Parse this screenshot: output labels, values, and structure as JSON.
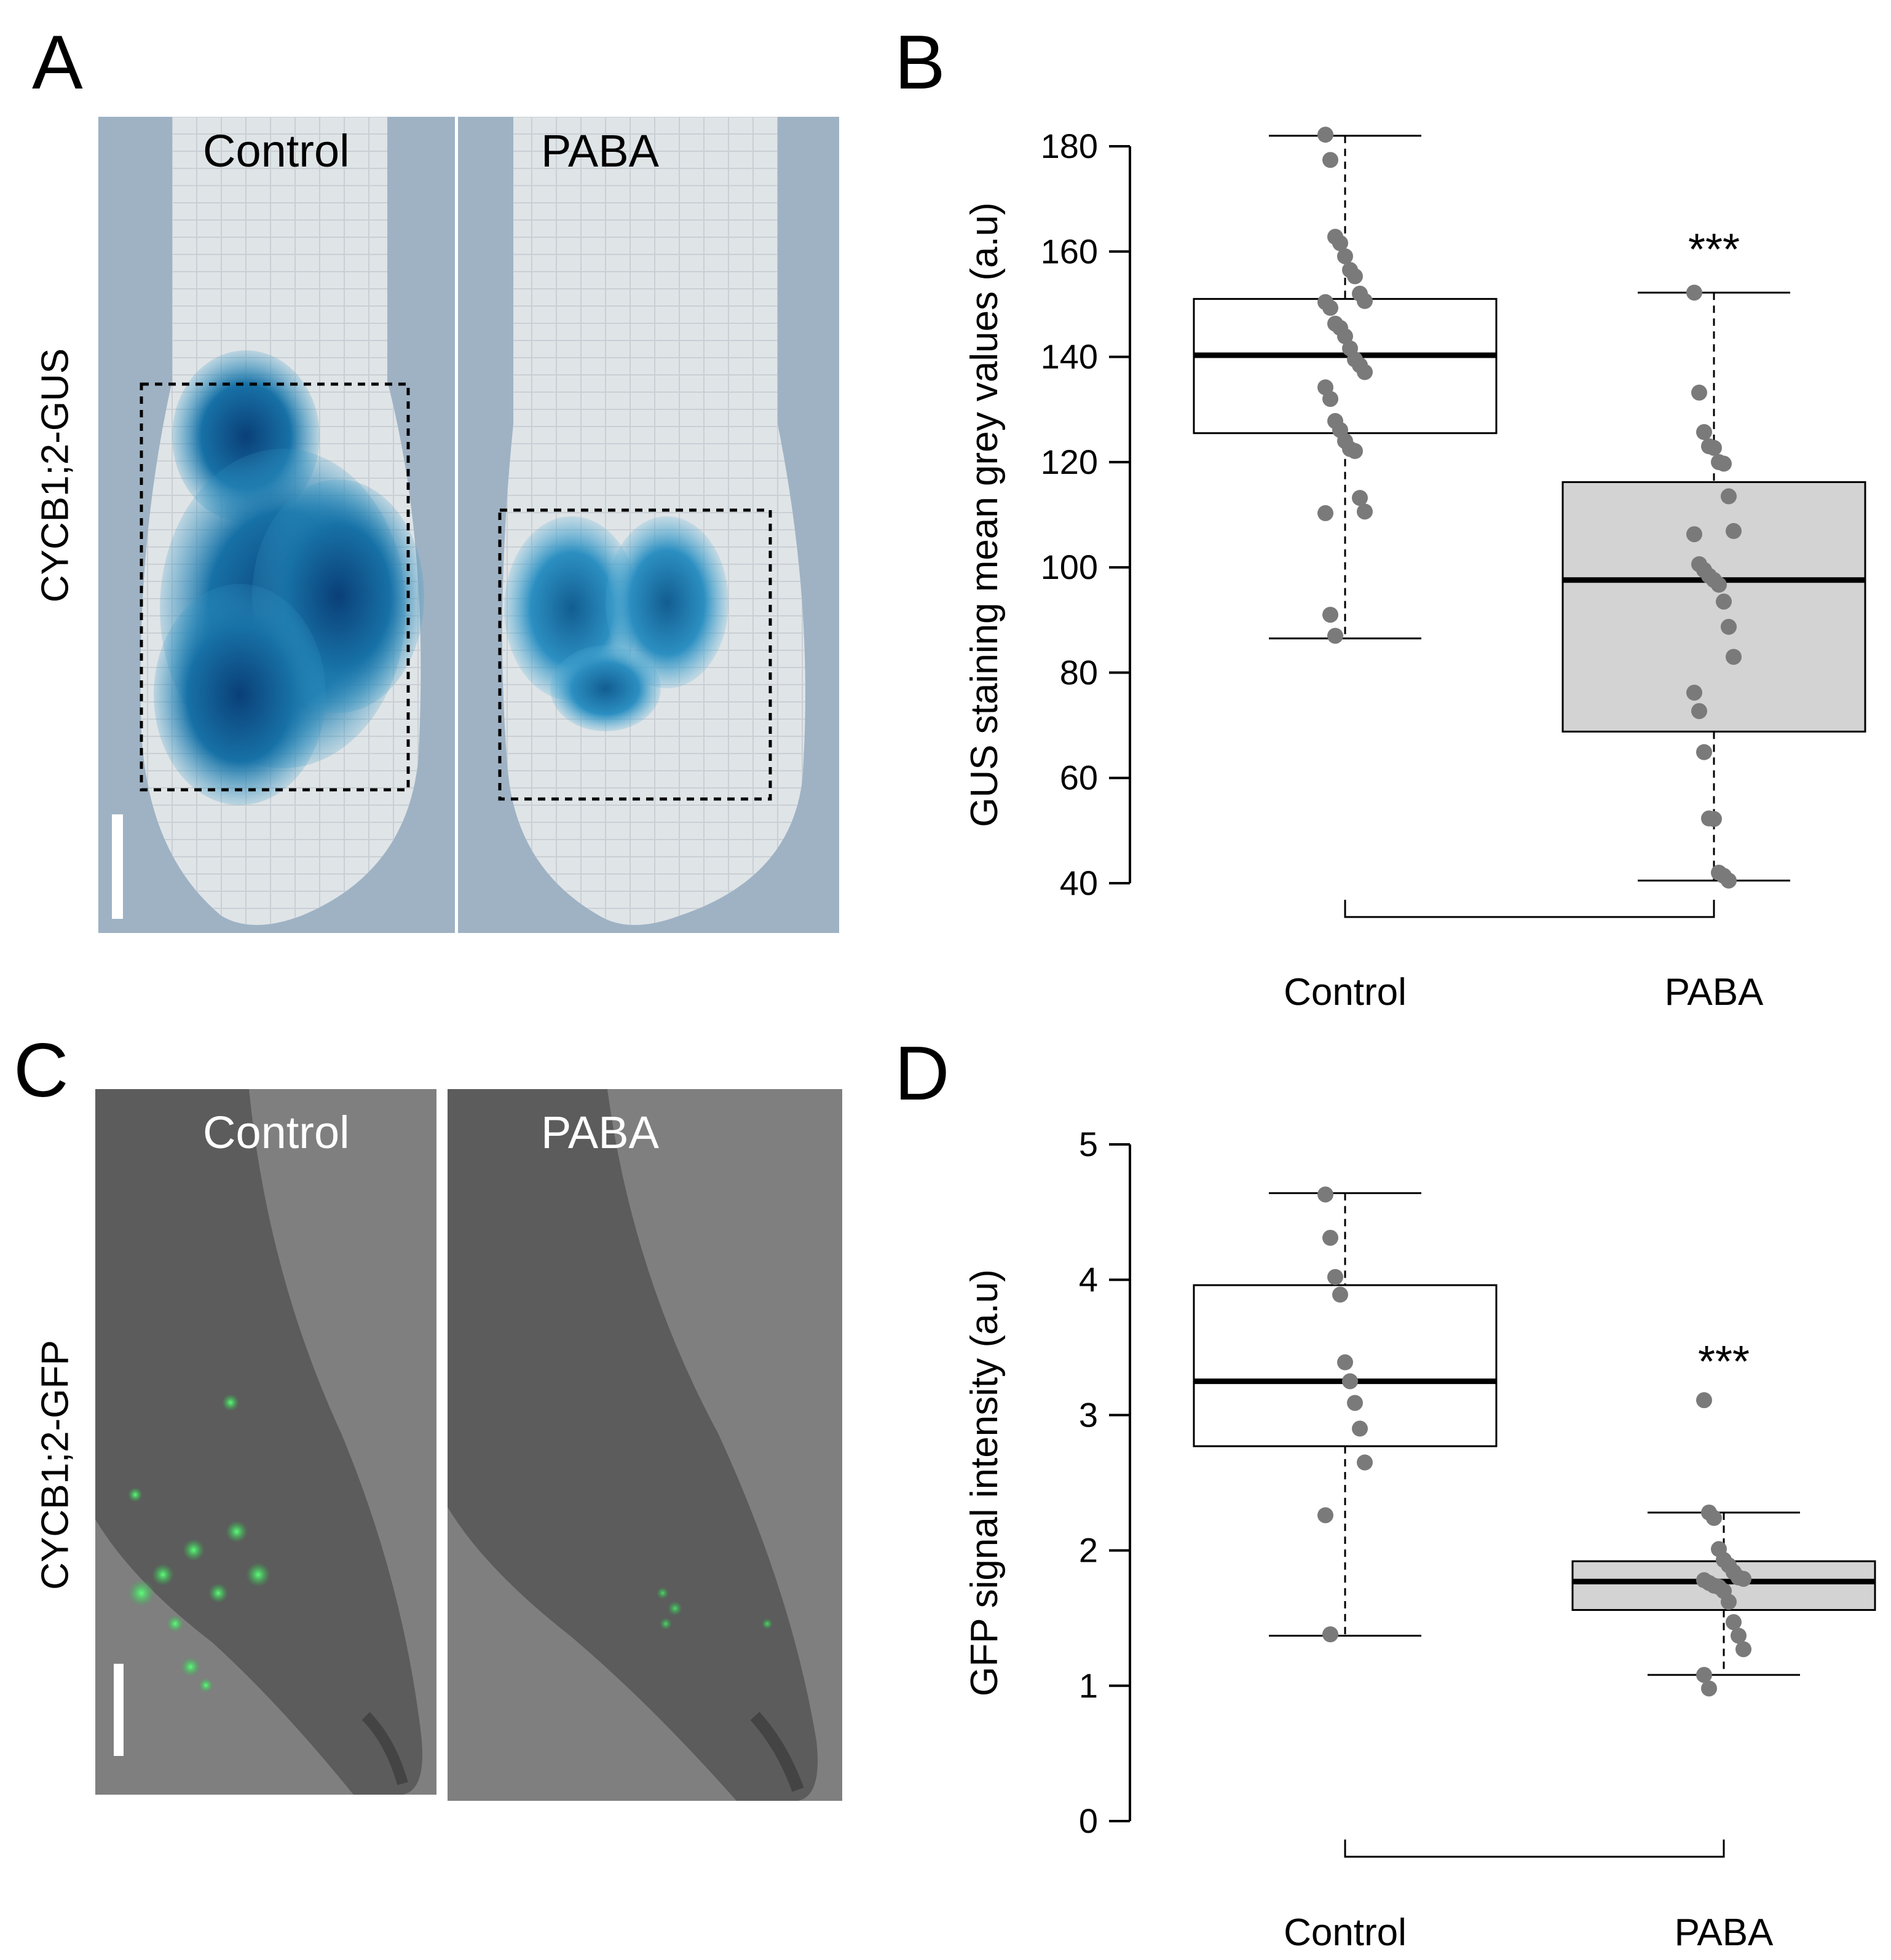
{
  "panels": {
    "A": {
      "letter": "A",
      "row_label": "CYCB1;2-GUS",
      "images": [
        {
          "title": "Control"
        },
        {
          "title": "PABA"
        }
      ]
    },
    "B": {
      "letter": "B"
    },
    "C": {
      "letter": "C",
      "row_label": "CYCB1;2-GFP",
      "images": [
        {
          "title": "Control"
        },
        {
          "title": "PABA"
        }
      ]
    },
    "D": {
      "letter": "D"
    }
  },
  "chart_data": [
    {
      "panel": "B",
      "type": "box",
      "ylabel": "GUS staining  mean grey values (a.u)",
      "ylim": [
        40,
        180
      ],
      "yticks": [
        40,
        60,
        80,
        100,
        120,
        140,
        160,
        180
      ],
      "categories": [
        "Control",
        "PABA"
      ],
      "boxes": [
        {
          "category": "Control",
          "fill": "#ffffff",
          "min": 86.5,
          "q1": 125.5,
          "median": 140.3,
          "q3": 151.0,
          "max": 182.0,
          "points": [
            182.2,
            177.4,
            162.8,
            161.6,
            159.1,
            156.5,
            155.3,
            152.0,
            150.6,
            150.4,
            149.3,
            146.3,
            145.5,
            143.9,
            141.6,
            139.5,
            138.4,
            137.1,
            134.2,
            132.0,
            127.8,
            126.1,
            124.0,
            122.5,
            122.1,
            113.2,
            110.6,
            110.3,
            91.0,
            87.0
          ]
        },
        {
          "category": "PABA",
          "fill": "#d3d3d3",
          "min": 40.5,
          "q1": 68.8,
          "median": 97.6,
          "q3": 116.2,
          "max": 152.2,
          "points": [
            152.2,
            133.2,
            125.7,
            123.0,
            122.7,
            120.0,
            119.7,
            113.5,
            106.9,
            106.3,
            100.6,
            99.5,
            98.4,
            97.6,
            96.7,
            93.5,
            88.7,
            83.0,
            76.2,
            72.7,
            64.9,
            52.3,
            52.2,
            42.0,
            41.4,
            40.5
          ]
        }
      ],
      "annotation": {
        "text": "***",
        "category": "PABA",
        "y": 161
      }
    },
    {
      "panel": "D",
      "type": "box",
      "ylabel": "GFP signal intensity (a.u)",
      "ylim": [
        0,
        5
      ],
      "yticks": [
        0,
        1,
        2,
        3,
        4,
        5
      ],
      "categories": [
        "Control",
        "PABA"
      ],
      "boxes": [
        {
          "category": "Control",
          "fill": "#ffffff",
          "min": 1.37,
          "q1": 2.77,
          "median": 3.25,
          "q3": 3.96,
          "max": 4.64,
          "points": [
            4.63,
            4.31,
            4.02,
            3.89,
            3.39,
            3.25,
            3.09,
            2.9,
            2.65,
            2.26,
            1.38
          ]
        },
        {
          "category": "PABA",
          "fill": "#d3d3d3",
          "min": 1.08,
          "q1": 1.56,
          "median": 1.77,
          "q3": 1.92,
          "max": 2.28,
          "points": [
            3.11,
            2.28,
            2.24,
            2.01,
            1.93,
            1.89,
            1.84,
            1.8,
            1.79,
            1.78,
            1.76,
            1.74,
            1.73,
            1.7,
            1.62,
            1.47,
            1.37,
            1.27,
            1.08,
            0.98
          ]
        }
      ],
      "annotation": {
        "text": "***",
        "category": "PABA",
        "y": 3.42
      }
    }
  ]
}
